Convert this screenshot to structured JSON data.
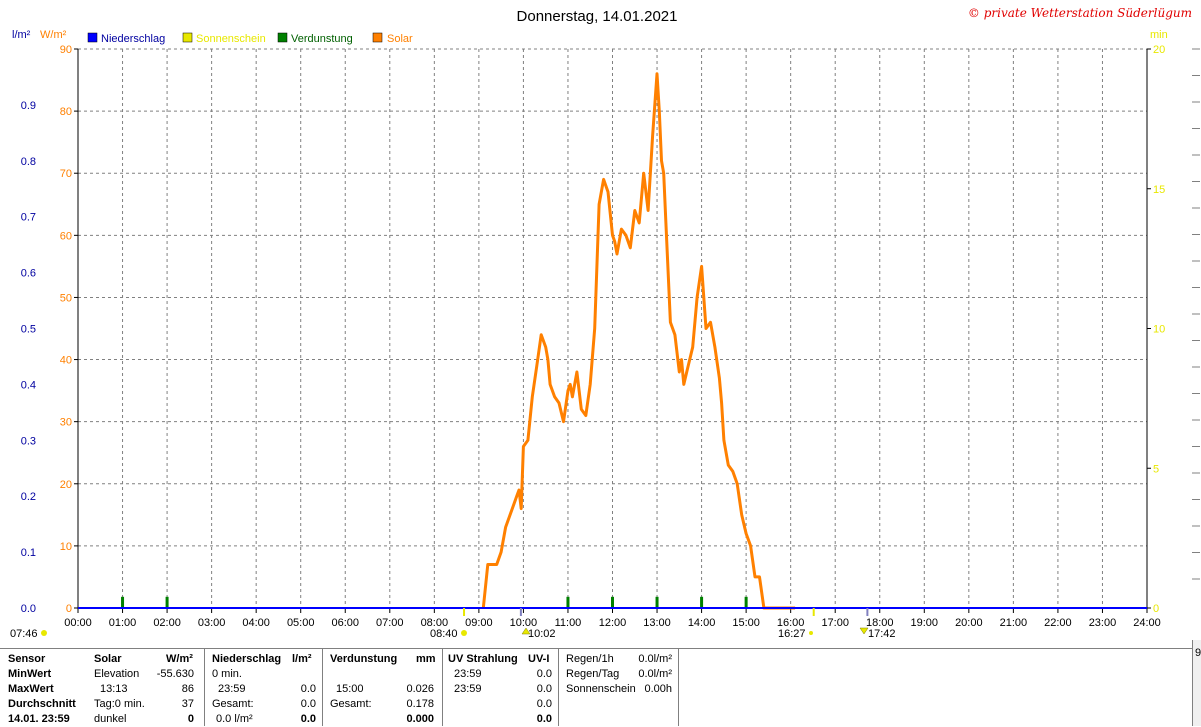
{
  "header": {
    "title": "Donnerstag, 14.01.2021",
    "copyright": "© private Wetterstation Süderlügum"
  },
  "axes_units": {
    "left_rain": "l/m²",
    "left_solar": "W/m²",
    "right_sun": "min"
  },
  "legend": [
    {
      "label": "Niederschlag",
      "color": "#0000ff"
    },
    {
      "label": "Sonnenschein",
      "color": "#e8e800"
    },
    {
      "label": "Verdunstung",
      "color": "#008000"
    },
    {
      "label": "Solar",
      "color": "#ff8000"
    }
  ],
  "sun_events": {
    "sunrise": "07:46",
    "sunshine_start": "08:40",
    "solar_noon": "10:02",
    "sunshine_end": "16:27",
    "sunset": "17:42"
  },
  "chart_data": {
    "type": "line",
    "title": "Donnerstag, 14.01.2021",
    "x_ticks": [
      "00:00",
      "01:00",
      "02:00",
      "03:00",
      "04:00",
      "05:00",
      "06:00",
      "07:00",
      "08:00",
      "09:00",
      "10:00",
      "11:00",
      "12:00",
      "13:00",
      "14:00",
      "15:00",
      "16:00",
      "17:00",
      "18:00",
      "19:00",
      "20:00",
      "21:00",
      "22:00",
      "23:00",
      "24:00"
    ],
    "xlim": [
      0,
      24
    ],
    "y_left_solar": {
      "label": "W/m²",
      "lim": [
        0,
        90
      ],
      "ticks": [
        "0",
        "10",
        "20",
        "30",
        "40",
        "50",
        "60",
        "70",
        "80",
        "90"
      ],
      "color": "#ff8000"
    },
    "y_left_rain": {
      "label": "l/m²",
      "lim": [
        0,
        1.0
      ],
      "ticks": [
        "0.0",
        "0.1",
        "0.2",
        "0.3",
        "0.4",
        "0.5",
        "0.6",
        "0.7",
        "0.8",
        "0.9"
      ],
      "color": "#0000ff"
    },
    "y_right_sun": {
      "label": "min",
      "lim": [
        0,
        20
      ],
      "ticks": [
        "0",
        "5",
        "10",
        "15",
        "20"
      ],
      "color": "#e8e800"
    },
    "grid": true,
    "legend_position": "top-left",
    "series": [
      {
        "name": "Solar",
        "color": "#ff8000",
        "x": [
          9.1,
          9.2,
          9.4,
          9.5,
          9.6,
          9.75,
          9.85,
          9.9,
          9.95,
          10.0,
          10.1,
          10.2,
          10.3,
          10.4,
          10.5,
          10.55,
          10.6,
          10.7,
          10.8,
          10.9,
          11.0,
          11.05,
          11.1,
          11.2,
          11.3,
          11.4,
          11.5,
          11.6,
          11.7,
          11.8,
          11.9,
          12.0,
          12.05,
          12.1,
          12.2,
          12.3,
          12.4,
          12.5,
          12.55,
          12.6,
          12.7,
          12.8,
          12.9,
          13.0,
          13.05,
          13.1,
          13.15,
          13.2,
          13.3,
          13.4,
          13.5,
          13.55,
          13.6,
          13.7,
          13.8,
          13.9,
          14.0,
          14.1,
          14.2,
          14.3,
          14.4,
          14.45,
          14.5,
          14.6,
          14.7,
          14.8,
          14.9,
          15.0,
          15.1,
          15.2,
          15.3,
          15.4,
          15.5,
          15.6,
          15.7,
          15.8,
          15.9,
          16.0,
          16.05,
          16.1
        ],
        "values": [
          0,
          7,
          7,
          9,
          13,
          16,
          18,
          19,
          16,
          26,
          27,
          34,
          39,
          44,
          42,
          40,
          36,
          34,
          33,
          30,
          35,
          36,
          34,
          38,
          32,
          31,
          36,
          45,
          65,
          69,
          67,
          60,
          59,
          57,
          61,
          60,
          58,
          64,
          63,
          62,
          70,
          64,
          76,
          86,
          80,
          72,
          70,
          62,
          46,
          44,
          38,
          40,
          36,
          39,
          42,
          50,
          55,
          45,
          46,
          42,
          37,
          33,
          27,
          23,
          22,
          20,
          15,
          12,
          10,
          5,
          5,
          0,
          0,
          0,
          0,
          0,
          0,
          0,
          0,
          0
        ]
      },
      {
        "name": "Verdunstung",
        "color": "#008000",
        "x": [
          1,
          2,
          11,
          12,
          13,
          14,
          15
        ],
        "values": [
          0.02,
          0.02,
          0.02,
          0.02,
          0.02,
          0.02,
          0.02
        ]
      },
      {
        "name": "Niederschlag",
        "color": "#0000ff",
        "x": [
          0,
          24
        ],
        "values": [
          0,
          0
        ]
      }
    ]
  },
  "table": {
    "col1": {
      "rows": [
        "Sensor",
        "MinWert",
        "MaxWert",
        "Durchschnitt",
        "14.01. 23:59"
      ]
    },
    "col2": {
      "header": "Solar",
      "unit": "W/m²",
      "rows": [
        {
          "left": "Elevation",
          "right": "-55.630"
        },
        {
          "left": "13:13",
          "right": "86"
        },
        {
          "left": "Tag:0 min.",
          "right": "37"
        },
        {
          "left": "dunkel",
          "right": "0"
        }
      ]
    },
    "col3": {
      "header": "Niederschlag",
      "unit": "l/m²",
      "rows": [
        {
          "left": "0 min.",
          "right": ""
        },
        {
          "left": "23:59",
          "right": "0.0"
        },
        {
          "left": "Gesamt:",
          "right": "0.0"
        },
        {
          "left": "0.0 l/m²",
          "right": "0.0"
        }
      ]
    },
    "col4": {
      "header": "Verdunstung",
      "unit": "mm",
      "rows": [
        {
          "left": "",
          "right": ""
        },
        {
          "left": "15:00",
          "right": "0.026"
        },
        {
          "left": "Gesamt:",
          "right": "0.178"
        },
        {
          "left": "",
          "right": "0.000"
        }
      ]
    },
    "col5": {
      "header": "UV Strahlung",
      "unit": "UV-I",
      "rows": [
        {
          "left": "23:59",
          "right": "0.0"
        },
        {
          "left": "23:59",
          "right": "0.0"
        },
        {
          "left": "",
          "right": "0.0"
        },
        {
          "left": "",
          "right": "0.0"
        }
      ]
    },
    "col6": {
      "rows": [
        {
          "left": "Regen/1h",
          "right": "0.0l/m²"
        },
        {
          "left": "Regen/Tag",
          "right": "0.0l/m²"
        },
        {
          "left": "Sonnenschein",
          "right": "0.00h"
        }
      ]
    },
    "edge_value": "9"
  }
}
